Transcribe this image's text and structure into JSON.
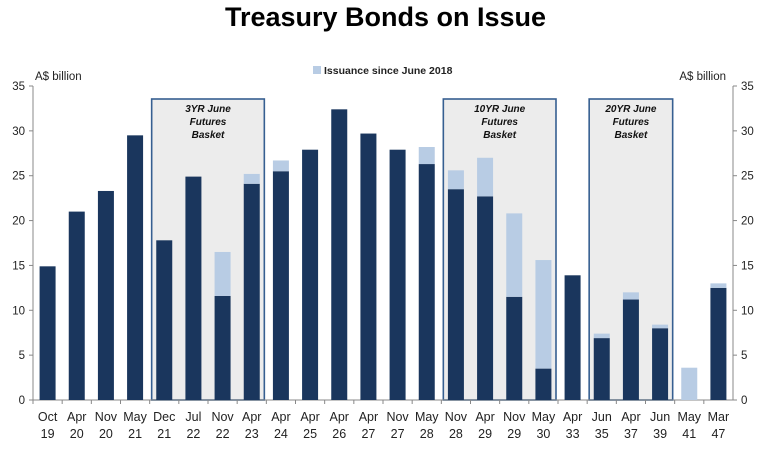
{
  "chart_data": {
    "type": "bar",
    "stacked": true,
    "title": "Treasury Bonds on Issue",
    "left_unit": "A$ billion",
    "right_unit": "A$ billion",
    "ylim": [
      0,
      35
    ],
    "yticks": [
      "0",
      "5",
      "10",
      "15",
      "20",
      "25",
      "30",
      "35"
    ],
    "legend": {
      "label": "Issuance since June 2018",
      "placement": "top-center"
    },
    "colors": {
      "outstanding": "#1a365d",
      "issuance": "#b8cce4",
      "box_fill": "#ececec",
      "box_border": "#365f91"
    },
    "categories": [
      {
        "month": "Oct",
        "year": "19"
      },
      {
        "month": "Apr",
        "year": "20"
      },
      {
        "month": "Nov",
        "year": "20"
      },
      {
        "month": "May",
        "year": "21"
      },
      {
        "month": "Dec",
        "year": "21"
      },
      {
        "month": "Jul",
        "year": "22"
      },
      {
        "month": "Nov",
        "year": "22"
      },
      {
        "month": "Apr",
        "year": "23"
      },
      {
        "month": "Apr",
        "year": "24"
      },
      {
        "month": "Apr",
        "year": "25"
      },
      {
        "month": "Apr",
        "year": "26"
      },
      {
        "month": "Apr",
        "year": "27"
      },
      {
        "month": "Nov",
        "year": "27"
      },
      {
        "month": "May",
        "year": "28"
      },
      {
        "month": "Nov",
        "year": "28"
      },
      {
        "month": "Apr",
        "year": "29"
      },
      {
        "month": "Nov",
        "year": "29"
      },
      {
        "month": "May",
        "year": "30"
      },
      {
        "month": "Apr",
        "year": "33"
      },
      {
        "month": "Jun",
        "year": "35"
      },
      {
        "month": "Apr",
        "year": "37"
      },
      {
        "month": "Jun",
        "year": "39"
      },
      {
        "month": "May",
        "year": "41"
      },
      {
        "month": "Mar",
        "year": "47"
      }
    ],
    "series": [
      {
        "values": [
          14.9,
          21.0,
          23.3,
          29.5,
          17.8,
          24.9,
          11.6,
          24.1,
          25.5,
          27.9,
          32.4,
          29.7,
          27.9,
          26.3,
          23.5,
          22.7,
          11.5,
          3.5,
          13.9,
          6.9,
          11.2,
          8.0,
          0.0,
          12.5
        ]
      },
      {
        "name": "Issuance since June 2018",
        "values": [
          0,
          0,
          0,
          0,
          0,
          0,
          4.9,
          1.1,
          1.2,
          0,
          0,
          0,
          0,
          1.9,
          2.1,
          4.3,
          9.3,
          12.1,
          0,
          0.5,
          0.8,
          0.4,
          3.6,
          0.5
        ]
      }
    ],
    "futures_baskets": [
      {
        "lines": [
          "3YR June",
          "Futures",
          "Basket"
        ],
        "first_index": 4,
        "last_index": 7
      },
      {
        "lines": [
          "10YR June",
          "Futures",
          "Basket"
        ],
        "first_index": 14,
        "last_index": 17
      },
      {
        "lines": [
          "20YR June",
          "Futures",
          "Basket"
        ],
        "first_index": 19,
        "last_index": 21
      }
    ]
  }
}
